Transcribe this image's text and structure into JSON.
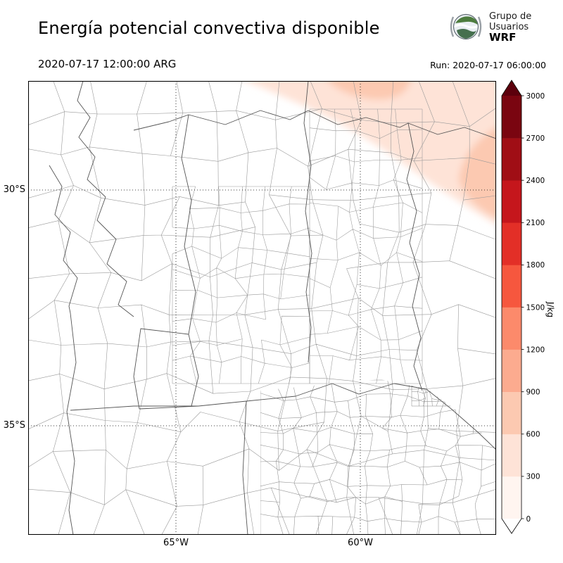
{
  "header": {
    "title": "Energía potencial convectiva disponible",
    "datetime": "2020-07-17 12:00:00 ARG",
    "run": "Run: 2020-07-17 06:00:00",
    "logo": {
      "line1": "Grupo de",
      "line2": "Usuarios",
      "line3": "WRF"
    }
  },
  "map": {
    "lat_labels": [
      "30°S",
      "35°S"
    ],
    "lon_labels": [
      "65°W",
      "60°W"
    ]
  },
  "chart_data": {
    "type": "heatmap",
    "title": "Energía potencial convectiva disponible",
    "valid_time": "2020-07-17 12:00:00 ARG",
    "run_time": "2020-07-17 06:00:00",
    "region": "Central Argentina with province and department boundaries",
    "gridlines": {
      "lats": [
        "30°S",
        "35°S"
      ],
      "lons": [
        "65°W",
        "60°W"
      ],
      "style": "dotted"
    },
    "units": "J/kg",
    "colorbar": {
      "label": "J/kg",
      "ticks": [
        "0",
        "300",
        "600",
        "900",
        "1200",
        "1500",
        "1800",
        "2100",
        "2400",
        "2700",
        "3000"
      ],
      "colors_bottom_to_top": [
        "#fff5f0",
        "#fee3d7",
        "#fcc9b1",
        "#fcab8f",
        "#fc8a6b",
        "#f6573e",
        "#e32f27",
        "#c5161c",
        "#a00e15",
        "#7a0510"
      ],
      "under_color": "#ffffff",
      "over_color": "#5c000c",
      "orientation": "vertical",
      "extend": "both"
    },
    "shaded_regions": [
      {
        "approx_value_jkg": "300-600",
        "location": "broad band across the northeastern (upper-right) part of the domain"
      },
      {
        "approx_value_jkg": "600-900",
        "location": "patch near top center-right and along the eastern edge near 30°S"
      },
      {
        "approx_value_jkg": "0",
        "location": "rest of the domain (white)"
      }
    ]
  }
}
